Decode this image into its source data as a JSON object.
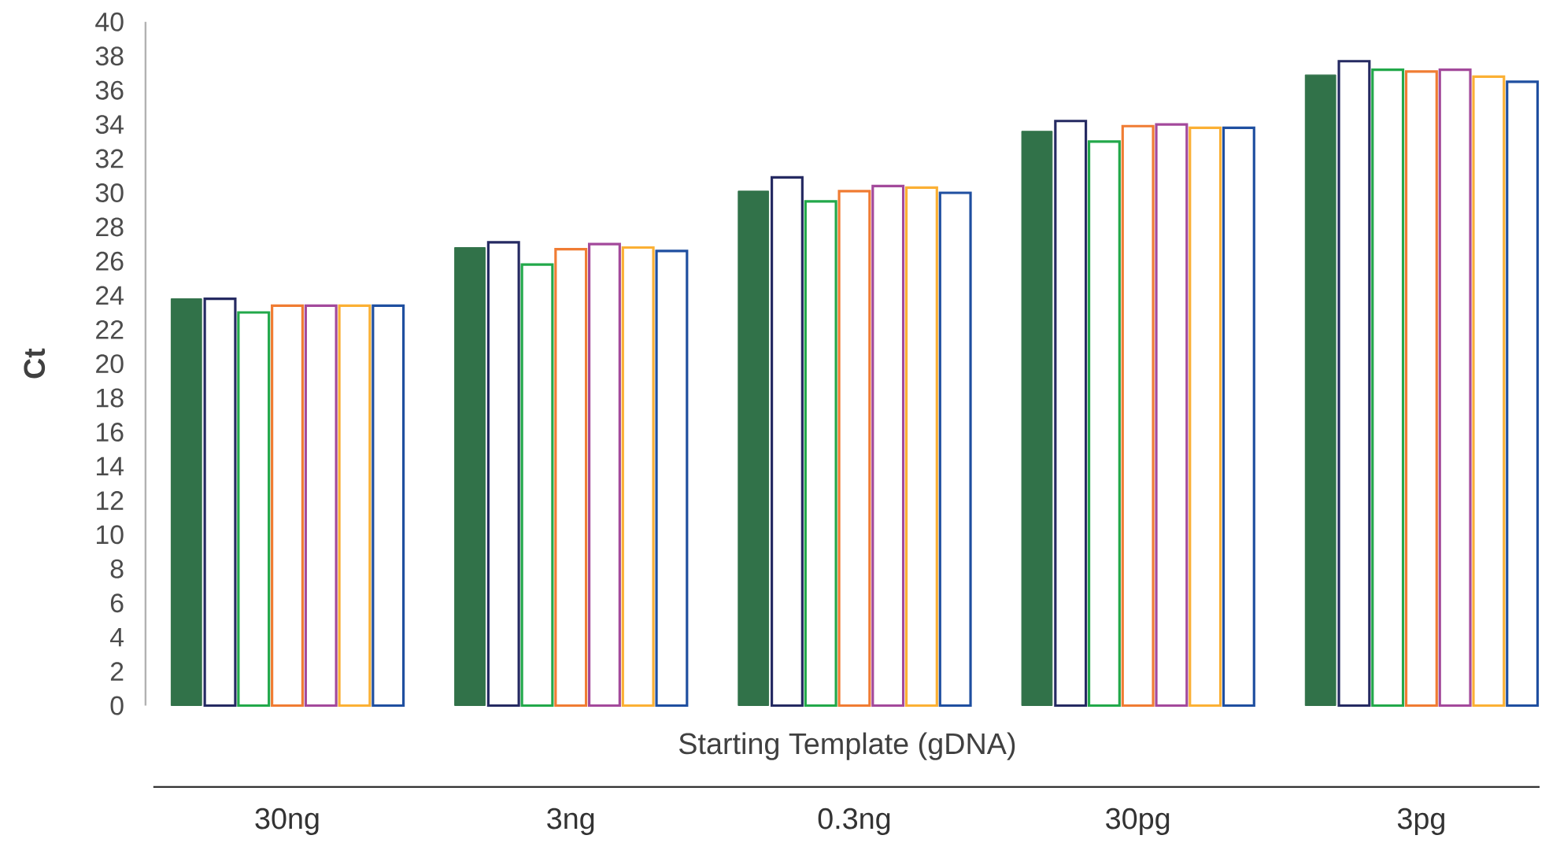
{
  "chart_data": {
    "type": "bar",
    "xlabel": "Starting Template (gDNA)",
    "ylabel": "Ct",
    "categories": [
      "30ng",
      "3ng",
      "0.3ng",
      "30pg",
      "3pg"
    ],
    "ylim": [
      0,
      40
    ],
    "yticks": [
      0,
      2,
      4,
      6,
      8,
      10,
      12,
      14,
      16,
      18,
      20,
      22,
      24,
      26,
      28,
      30,
      32,
      34,
      36,
      38,
      40
    ],
    "series": [
      {
        "color": "#317249",
        "values": [
          23.8,
          26.8,
          30.1,
          33.6,
          36.9
        ]
      },
      {
        "color": "#252a62",
        "values": [
          23.8,
          27.1,
          30.9,
          34.2,
          37.7
        ]
      },
      {
        "color": "#22a84a",
        "values": [
          23.0,
          25.8,
          29.5,
          33.0,
          37.2
        ]
      },
      {
        "color": "#f07c33",
        "values": [
          23.4,
          26.7,
          30.1,
          33.9,
          37.1
        ]
      },
      {
        "color": "#a3499b",
        "values": [
          23.4,
          27.0,
          30.4,
          34.0,
          37.2
        ]
      },
      {
        "color": "#fbb034",
        "values": [
          23.4,
          26.8,
          30.3,
          33.8,
          36.8
        ]
      },
      {
        "color": "#1f4fa0",
        "values": [
          23.4,
          26.6,
          30.0,
          33.8,
          36.5
        ]
      }
    ]
  }
}
